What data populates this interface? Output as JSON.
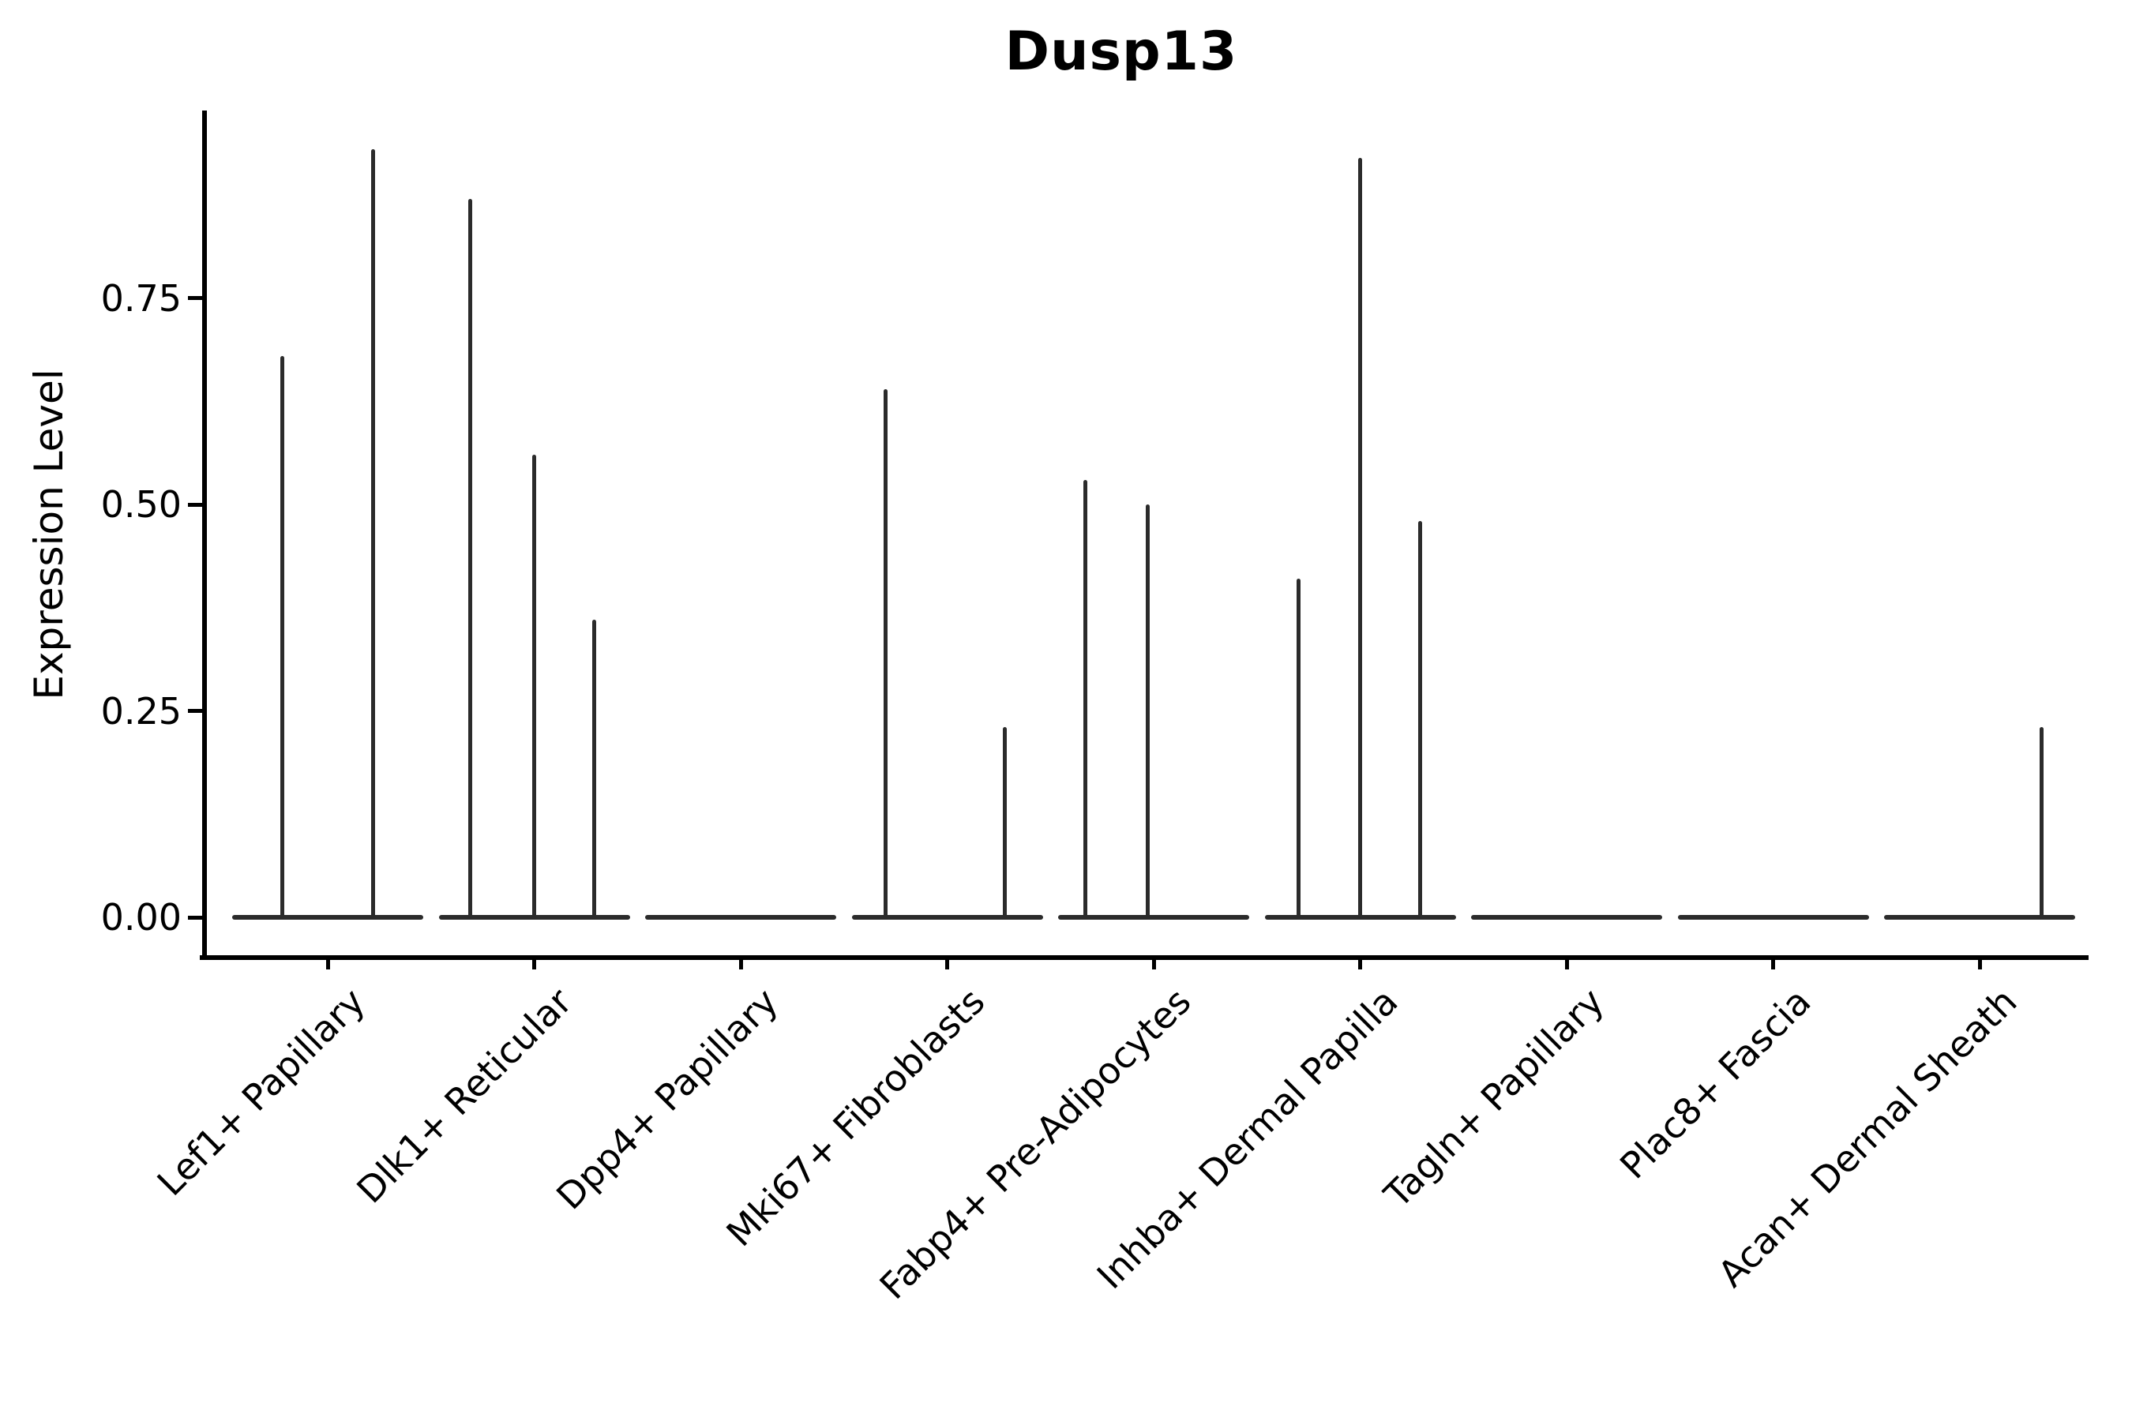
{
  "chart_data": {
    "type": "violin",
    "style": "seurat-vlnplot-spikes",
    "title": "Dusp13",
    "xlabel": "",
    "ylabel": "Expression Level",
    "ylim": [
      0,
      0.98
    ],
    "ytick_labels": [
      "0.00",
      "0.25",
      "0.50",
      "0.75"
    ],
    "yticks": [
      0.0,
      0.25,
      0.5,
      0.75
    ],
    "x_tick_rotation_deg": 45,
    "grid": false,
    "legend": false,
    "colors": {
      "violin_line": "#2b2b2b",
      "axis": "#000000",
      "text": "#000000",
      "background": "#ffffff"
    },
    "categories": [
      {
        "label": "Lef1+ Papillary",
        "spikes": [
          {
            "dx": -0.22,
            "value": 0.68
          },
          {
            "dx": 0.22,
            "value": 0.93
          }
        ]
      },
      {
        "label": "Dlk1+ Reticular",
        "spikes": [
          {
            "dx": -0.31,
            "value": 0.87
          },
          {
            "dx": 0.0,
            "value": 0.56
          },
          {
            "dx": 0.29,
            "value": 0.36
          }
        ]
      },
      {
        "label": "Dpp4+ Papillary",
        "spikes": []
      },
      {
        "label": "Mki67+ Fibroblasts",
        "spikes": [
          {
            "dx": -0.3,
            "value": 0.64
          },
          {
            "dx": 0.28,
            "value": 0.23
          }
        ]
      },
      {
        "label": "Fabp4+ Pre-Adipocytes",
        "spikes": [
          {
            "dx": -0.33,
            "value": 0.53
          },
          {
            "dx": -0.03,
            "value": 0.5
          }
        ]
      },
      {
        "label": "Inhba+ Dermal Papilla",
        "spikes": [
          {
            "dx": -0.3,
            "value": 0.41
          },
          {
            "dx": 0.0,
            "value": 0.92
          },
          {
            "dx": 0.29,
            "value": 0.48
          }
        ]
      },
      {
        "label": "Tagln+ Papillary",
        "spikes": []
      },
      {
        "label": "Plac8+ Fascia",
        "spikes": []
      },
      {
        "label": "Acan+ Dermal Sheath",
        "spikes": [
          {
            "dx": 0.3,
            "value": 0.23
          }
        ]
      }
    ]
  }
}
